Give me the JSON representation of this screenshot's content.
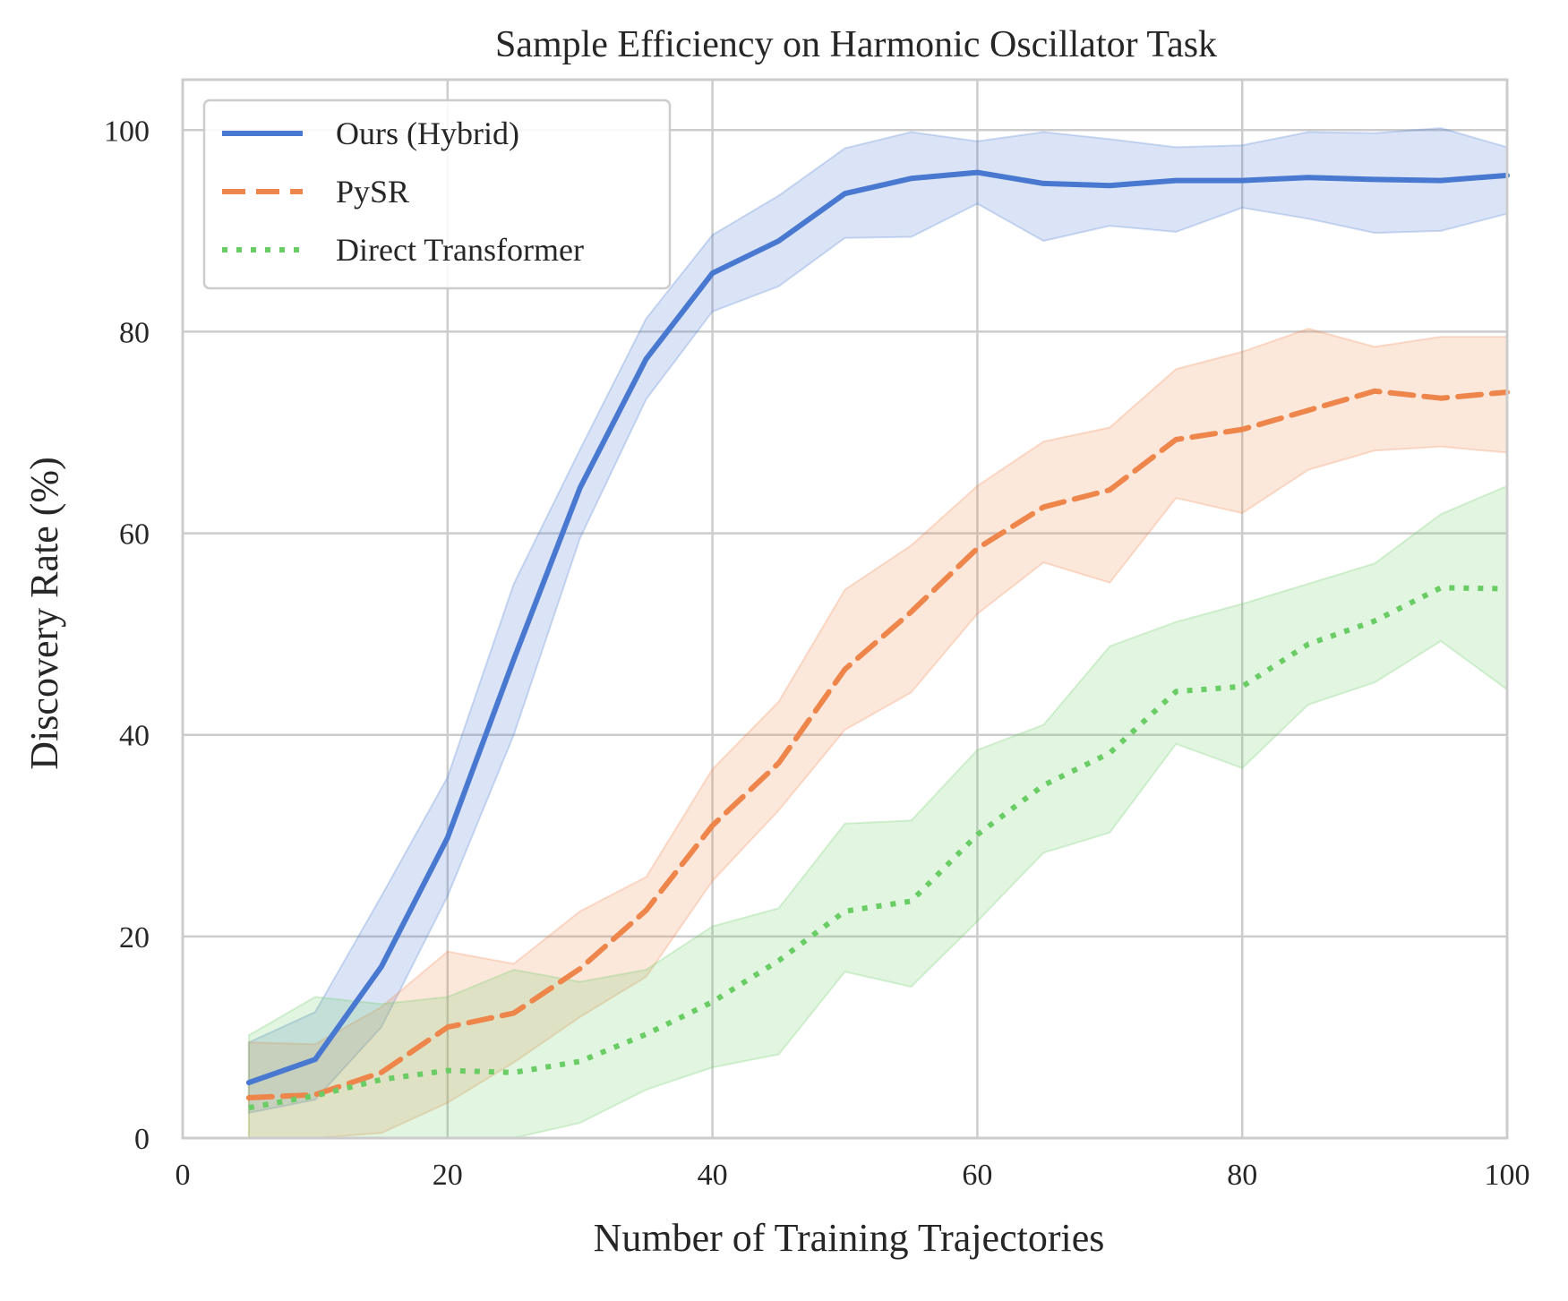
{
  "chart_data": {
    "type": "line",
    "title": "Sample Efficiency on Harmonic Oscillator Task",
    "xlabel": "Number of Training Trajectories",
    "ylabel": "Discovery Rate (%)",
    "xlim": [
      0,
      100
    ],
    "ylim": [
      0,
      105
    ],
    "xticks": [
      "0",
      "20",
      "40",
      "60",
      "80",
      "100"
    ],
    "yticks": [
      "0",
      "20",
      "40",
      "60",
      "80",
      "100"
    ],
    "grid": true,
    "legend_position": "top-left",
    "x": [
      5,
      10,
      15,
      20,
      25,
      30,
      35,
      40,
      45,
      50,
      55,
      60,
      65,
      70,
      75,
      80,
      85,
      90,
      95,
      100
    ],
    "series": [
      {
        "name": "Ours (Hybrid)",
        "color": "#4878d0",
        "style": "solid",
        "values": [
          5.5,
          7.8,
          17,
          29.8,
          47.5,
          64.5,
          77.3,
          85.8,
          89,
          93.7,
          95.2,
          95.8,
          94.7,
          94.5,
          95,
          95,
          95.3,
          95.1,
          95,
          95.5
        ],
        "lower": [
          2.5,
          3.8,
          11,
          24,
          40,
          59.5,
          73.3,
          82,
          84.5,
          89.3,
          89.4,
          92.7,
          89,
          90.5,
          89.9,
          92.3,
          91.2,
          89.8,
          90,
          91.7
        ],
        "upper": [
          9.5,
          12.5,
          24,
          35.8,
          55,
          68.3,
          81.3,
          89.6,
          93.5,
          98.2,
          99.8,
          98.9,
          99.8,
          99.1,
          98.3,
          98.5,
          99.8,
          99.7,
          100.2,
          98.3
        ]
      },
      {
        "name": "PySR",
        "color": "#ee854a",
        "style": "dashed",
        "values": [
          4,
          4.3,
          6.5,
          11,
          12.4,
          16.8,
          22.6,
          31,
          37.2,
          46.5,
          52.2,
          58.5,
          62.6,
          64.3,
          69.3,
          70.3,
          72.2,
          74.1,
          73.4,
          74
        ],
        "lower": [
          0,
          0,
          0.5,
          3.5,
          7.5,
          12,
          16,
          25.5,
          32.5,
          40.5,
          44.2,
          52,
          57.1,
          55.1,
          63.5,
          62,
          66.3,
          68.2,
          68.6,
          68
        ],
        "upper": [
          9.5,
          9.3,
          13,
          18.5,
          17.3,
          22.5,
          25.9,
          36.6,
          43.3,
          54.4,
          58.8,
          64.7,
          69.1,
          70.5,
          76.3,
          78,
          80.3,
          78.5,
          79.5,
          79.5
        ]
      },
      {
        "name": "Direct Transformer",
        "color": "#6acc64",
        "style": "dotted",
        "values": [
          3,
          4.2,
          5.8,
          6.7,
          6.5,
          7.6,
          10.3,
          13.5,
          17.6,
          22.5,
          23.5,
          30.1,
          35,
          38.2,
          44.3,
          44.8,
          49,
          51.3,
          54.6,
          54.5
        ],
        "lower": [
          0,
          0,
          0,
          0,
          0,
          1.5,
          4.8,
          7,
          8.3,
          16.5,
          15,
          21.5,
          28.3,
          30.3,
          39.1,
          36.7,
          43,
          45.2,
          49.3,
          44.5
        ],
        "upper": [
          10.2,
          14,
          13.3,
          14,
          16.7,
          15.5,
          16.7,
          21,
          22.8,
          31.2,
          31.5,
          38.5,
          41,
          48.8,
          51.2,
          53,
          55,
          57,
          61.9,
          64.7
        ]
      }
    ]
  }
}
